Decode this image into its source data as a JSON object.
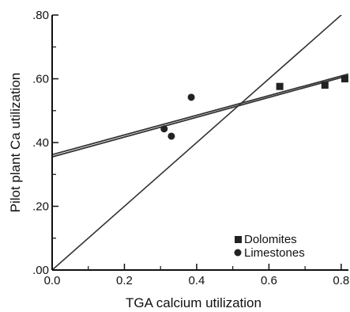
{
  "chart_data": {
    "type": "scatter",
    "xlabel": "TGA calcium utilization",
    "ylabel": "Pilot plant Ca utilization",
    "xlim": [
      0.0,
      0.82
    ],
    "ylim": [
      0.0,
      0.8
    ],
    "x_ticks": [
      0.0,
      0.2,
      0.4,
      0.6,
      0.8
    ],
    "x_tick_labels": [
      "0.0",
      "0.2",
      "0.4",
      "0.6",
      "0.8"
    ],
    "y_ticks": [
      0.0,
      0.2,
      0.4,
      0.6,
      0.8
    ],
    "y_tick_labels": [
      ".00",
      ".20",
      ".40",
      ".60",
      ".80"
    ],
    "grid": false,
    "legend_position": "bottom-right",
    "series": [
      {
        "name": "Dolomites",
        "marker": "square",
        "color": "#222222",
        "points": [
          {
            "x": 0.63,
            "y": 0.576
          },
          {
            "x": 0.755,
            "y": 0.58
          },
          {
            "x": 0.81,
            "y": 0.6
          }
        ]
      },
      {
        "name": "Limestones",
        "marker": "circle",
        "color": "#222222",
        "points": [
          {
            "x": 0.31,
            "y": 0.443
          },
          {
            "x": 0.33,
            "y": 0.42
          },
          {
            "x": 0.385,
            "y": 0.542
          }
        ]
      }
    ],
    "lines": [
      {
        "kind": "regression",
        "x": [
          0.0,
          0.82
        ],
        "y": [
          0.362,
          0.615
        ],
        "color": "#333333"
      },
      {
        "kind": "regression",
        "x": [
          0.0,
          0.82
        ],
        "y": [
          0.355,
          0.61
        ],
        "color": "#333333"
      },
      {
        "kind": "y=x",
        "x": [
          0.0,
          0.82
        ],
        "y": [
          0.0,
          0.82
        ],
        "color": "#333333"
      }
    ]
  }
}
